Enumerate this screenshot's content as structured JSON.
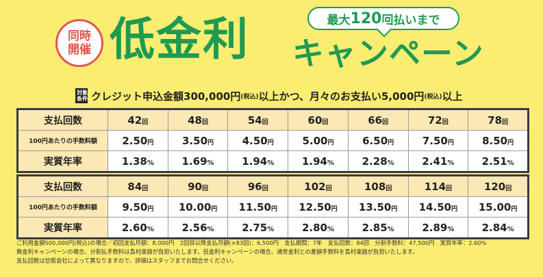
{
  "header": {
    "badge_line1": "同時",
    "badge_line2": "開催",
    "title": "低金利",
    "bubble_prefix": "最大",
    "bubble_num": "120",
    "bubble_suffix": "回払いまで",
    "campaign": "キャンペーン"
  },
  "condition": {
    "tag_line1": "対象",
    "tag_line2": "条件",
    "text1": "クレジット申込金額300,000円",
    "tax1": "(税込)",
    "text2": "以上かつ、月々のお支払い5,000円",
    "tax2": "(税込)",
    "text3": "以上"
  },
  "units": {
    "times": "回",
    "yen": "円",
    "percent": "%"
  },
  "table1": {
    "head_count": "支払回数",
    "head_fee": "100円あたりの手数料額",
    "head_rate": "実質年率",
    "counts": [
      "42",
      "48",
      "54",
      "60",
      "66",
      "72",
      "78"
    ],
    "fees": [
      "2.50",
      "3.50",
      "4.50",
      "5.00",
      "6.50",
      "7.50",
      "8.50"
    ],
    "rates": [
      "1.38",
      "1.69",
      "1.94",
      "1.94",
      "2.28",
      "2.41",
      "2.51"
    ]
  },
  "table2": {
    "head_count": "支払回数",
    "head_fee": "100円あたりの手数料額",
    "head_rate": "実質年率",
    "counts": [
      "84",
      "90",
      "96",
      "102",
      "108",
      "114",
      "120"
    ],
    "fees": [
      "9.50",
      "10.00",
      "11.50",
      "12.50",
      "13.50",
      "14.50",
      "15.00"
    ],
    "rates": [
      "2.60",
      "2.56",
      "2.75",
      "2.80",
      "2.85",
      "2.89",
      "2.84"
    ]
  },
  "notes": [
    "ご利用金額500,000円(税込)の場合／初回支払月額：8,000円　2回目以降支払月額(×83回)：6,500円　支払期間：7年　支払回数：84回　分割手数料：47,500円　実質年率：2.60%",
    "無金利キャンペーンの場合、分割払手数料は島村楽器が負担いたします。低金利キャンペーンの場合、通常金利との差額手数料を島村楽器が負担いたします。",
    "支払回数は信販会社によって異なりますので、詳細はスタッフまでお問合せください。"
  ]
}
